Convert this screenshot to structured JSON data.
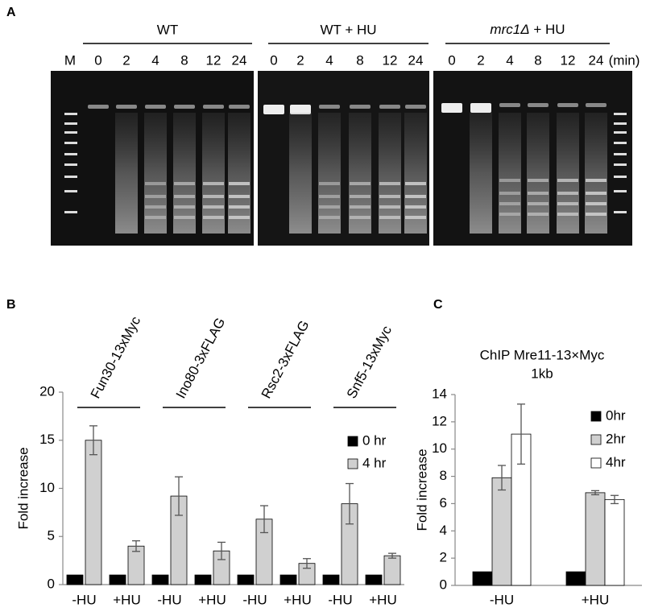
{
  "figure": {
    "panel_a": {
      "label": "A",
      "marker": "M",
      "groups": [
        "WT",
        "WT + HU"
      ],
      "mutant": {
        "gene": "mrc1Δ",
        "suffix": "+ HU"
      },
      "lanes": [
        "0",
        "2",
        "4",
        "8",
        "12",
        "24"
      ],
      "unit": "(min)"
    },
    "panel_b": {
      "label": "B"
    },
    "panel_c": {
      "label": "C"
    }
  },
  "chart_data": [
    {
      "type": "bar",
      "y_label": "Fold increase",
      "categories": [
        "-HU",
        "+HU",
        "-HU",
        "+HU",
        "-HU",
        "+HU",
        "-HU",
        "+HU"
      ],
      "groups": [
        "Fun30-13xMyc",
        "Ino80-3xFLAG",
        "Rsc2-3xFLAG",
        "Snf5-13xMyc"
      ],
      "series": [
        {
          "name": "0 hr",
          "color": "#000000",
          "values": [
            1,
            1,
            1,
            1,
            1,
            1,
            1,
            1
          ]
        },
        {
          "name": "4 hr",
          "color": "#d0d0d0",
          "values": [
            15,
            4,
            9.2,
            3.5,
            6.8,
            2.2,
            8.4,
            3.0
          ],
          "errors": [
            1.5,
            0.55,
            2.0,
            0.9,
            1.4,
            0.5,
            2.1,
            0.25
          ]
        }
      ],
      "ylim": [
        0,
        20
      ],
      "yticks": [
        0,
        5,
        10,
        15,
        20
      ],
      "legend": "upper-right"
    },
    {
      "type": "bar",
      "title": "ChIP Mre11-13×Myc",
      "subtitle": "1kb",
      "y_label": "Fold increase",
      "categories": [
        "-HU",
        "+HU"
      ],
      "series": [
        {
          "name": "0hr",
          "color": "#000000",
          "values": [
            1,
            1
          ]
        },
        {
          "name": "2hr",
          "color": "#d0d0d0",
          "values": [
            7.9,
            6.8
          ],
          "errors": [
            0.9,
            0.15
          ]
        },
        {
          "name": "4hr",
          "color": "#ffffff",
          "values": [
            11.1,
            6.3
          ],
          "errors": [
            2.2,
            0.3
          ]
        }
      ],
      "ylim": [
        0,
        14
      ],
      "yticks": [
        0,
        2,
        4,
        6,
        8,
        10,
        12,
        14
      ],
      "legend": "upper-right"
    }
  ]
}
